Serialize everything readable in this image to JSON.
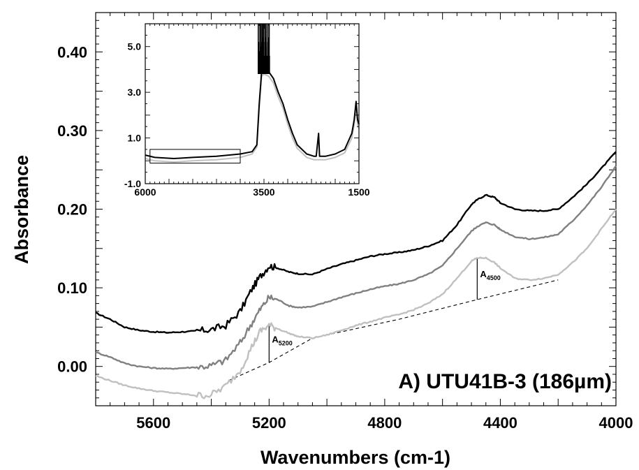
{
  "chart_data": [
    {
      "type": "line",
      "xlabel": "Wavenumbers (cm-1)",
      "ylabel": "Absorbance",
      "xlim": [
        5800,
        4000
      ],
      "ylim": [
        -0.05,
        0.45
      ],
      "x_reversed": true,
      "xticks": [
        5600,
        5200,
        4800,
        4400,
        4000
      ],
      "xtick_labels": [
        "5600",
        "5200",
        "4800",
        "4400",
        "4000"
      ],
      "yticks": [
        0.0,
        0.1,
        0.2,
        0.3,
        0.4
      ],
      "ytick_labels": [
        "0.00",
        "0.10",
        "0.20",
        "0.30",
        "0.40"
      ],
      "panel_label": "A) UTU41B-3 (186µm)",
      "series": [
        {
          "color": "#000000",
          "points": [
            [
              5800,
              0.068
            ],
            [
              5750,
              0.06
            ],
            [
              5700,
              0.05
            ],
            [
              5650,
              0.046
            ],
            [
              5600,
              0.044
            ],
            [
              5550,
              0.043
            ],
            [
              5500,
              0.044
            ],
            [
              5450,
              0.045
            ],
            [
              5400,
              0.047
            ],
            [
              5350,
              0.052
            ],
            [
              5300,
              0.07
            ],
            [
              5260,
              0.098
            ],
            [
              5230,
              0.115
            ],
            [
              5200,
              0.128
            ],
            [
              5170,
              0.125
            ],
            [
              5130,
              0.12
            ],
            [
              5100,
              0.118
            ],
            [
              5050,
              0.117
            ],
            [
              5000,
              0.124
            ],
            [
              4950,
              0.13
            ],
            [
              4900,
              0.135
            ],
            [
              4850,
              0.14
            ],
            [
              4800,
              0.143
            ],
            [
              4750,
              0.145
            ],
            [
              4700,
              0.148
            ],
            [
              4650,
              0.153
            ],
            [
              4600,
              0.16
            ],
            [
              4550,
              0.18
            ],
            [
              4500,
              0.206
            ],
            [
              4480,
              0.212
            ],
            [
              4450,
              0.218
            ],
            [
              4420,
              0.215
            ],
            [
              4400,
              0.208
            ],
            [
              4350,
              0.2
            ],
            [
              4300,
              0.198
            ],
            [
              4250,
              0.198
            ],
            [
              4200,
              0.2
            ],
            [
              4150,
              0.215
            ],
            [
              4100,
              0.232
            ],
            [
              4050,
              0.252
            ],
            [
              4000,
              0.273
            ]
          ]
        },
        {
          "color": "#808080",
          "points": [
            [
              5800,
              0.018
            ],
            [
              5750,
              0.012
            ],
            [
              5700,
              0.004
            ],
            [
              5650,
              0.0
            ],
            [
              5600,
              -0.002
            ],
            [
              5550,
              -0.003
            ],
            [
              5500,
              -0.002
            ],
            [
              5450,
              -0.001
            ],
            [
              5400,
              0.001
            ],
            [
              5350,
              0.008
            ],
            [
              5300,
              0.03
            ],
            [
              5260,
              0.055
            ],
            [
              5230,
              0.073
            ],
            [
              5200,
              0.088
            ],
            [
              5170,
              0.085
            ],
            [
              5130,
              0.077
            ],
            [
              5100,
              0.075
            ],
            [
              5050,
              0.076
            ],
            [
              5000,
              0.082
            ],
            [
              4950,
              0.088
            ],
            [
              4900,
              0.093
            ],
            [
              4850,
              0.098
            ],
            [
              4800,
              0.102
            ],
            [
              4750,
              0.105
            ],
            [
              4700,
              0.11
            ],
            [
              4650,
              0.117
            ],
            [
              4600,
              0.128
            ],
            [
              4550,
              0.15
            ],
            [
              4500,
              0.172
            ],
            [
              4480,
              0.178
            ],
            [
              4450,
              0.183
            ],
            [
              4420,
              0.18
            ],
            [
              4400,
              0.174
            ],
            [
              4350,
              0.165
            ],
            [
              4300,
              0.162
            ],
            [
              4250,
              0.164
            ],
            [
              4200,
              0.168
            ],
            [
              4150,
              0.185
            ],
            [
              4100,
              0.205
            ],
            [
              4050,
              0.228
            ],
            [
              4000,
              0.255
            ]
          ]
        },
        {
          "color": "#c0c0c0",
          "points": [
            [
              5800,
              -0.012
            ],
            [
              5750,
              -0.018
            ],
            [
              5700,
              -0.024
            ],
            [
              5650,
              -0.028
            ],
            [
              5600,
              -0.031
            ],
            [
              5550,
              -0.033
            ],
            [
              5500,
              -0.035
            ],
            [
              5450,
              -0.037
            ],
            [
              5400,
              -0.036
            ],
            [
              5350,
              -0.025
            ],
            [
              5300,
              -0.005
            ],
            [
              5260,
              0.025
            ],
            [
              5230,
              0.045
            ],
            [
              5200,
              0.052
            ],
            [
              5170,
              0.048
            ],
            [
              5130,
              0.042
            ],
            [
              5100,
              0.038
            ],
            [
              5050,
              0.036
            ],
            [
              5000,
              0.04
            ],
            [
              4950,
              0.046
            ],
            [
              4900,
              0.052
            ],
            [
              4850,
              0.057
            ],
            [
              4800,
              0.062
            ],
            [
              4750,
              0.066
            ],
            [
              4700,
              0.072
            ],
            [
              4650,
              0.08
            ],
            [
              4600,
              0.092
            ],
            [
              4550,
              0.112
            ],
            [
              4500,
              0.134
            ],
            [
              4480,
              0.138
            ],
            [
              4450,
              0.138
            ],
            [
              4420,
              0.132
            ],
            [
              4400,
              0.125
            ],
            [
              4350,
              0.112
            ],
            [
              4300,
              0.11
            ],
            [
              4250,
              0.112
            ],
            [
              4200,
              0.117
            ],
            [
              4150,
              0.132
            ],
            [
              4100,
              0.15
            ],
            [
              4050,
              0.175
            ],
            [
              4000,
              0.2
            ]
          ]
        }
      ],
      "baselines": [
        {
          "style": "dashed",
          "points": [
            [
              5340,
              -0.018
            ],
            [
              5200,
              0.005
            ],
            [
              5050,
              0.036
            ],
            [
              4750,
              0.06
            ],
            [
              4480,
              0.085
            ],
            [
              4200,
              0.11
            ]
          ]
        }
      ],
      "annotations": [
        {
          "main": "A",
          "sub": "5200",
          "x": 5200,
          "y_top": 0.052,
          "y_bottom": 0.005
        },
        {
          "main": "A",
          "sub": "4500",
          "x": 4480,
          "y_top": 0.138,
          "y_bottom": 0.085
        }
      ]
    },
    {
      "type": "line",
      "inset": true,
      "xlim": [
        6000,
        1500
      ],
      "ylim": [
        -1.0,
        6.0
      ],
      "x_reversed": true,
      "xticks": [
        6000,
        3500,
        1500
      ],
      "xtick_labels": [
        "6000",
        "3500",
        "1500"
      ],
      "yticks": [
        -1.0,
        1.0,
        3.0,
        5.0
      ],
      "ytick_labels": [
        "-1.0",
        "1.0",
        "3.0",
        "5.0"
      ],
      "highlight_range": {
        "x": [
          5900,
          4000
        ],
        "y": [
          -0.1,
          0.5
        ]
      },
      "series": [
        {
          "color": "#000000",
          "points": [
            [
              6000,
              0.25
            ],
            [
              5800,
              0.15
            ],
            [
              5400,
              0.1
            ],
            [
              5000,
              0.15
            ],
            [
              4500,
              0.2
            ],
            [
              4000,
              0.3
            ],
            [
              3750,
              0.4
            ],
            [
              3650,
              0.7
            ],
            [
              3600,
              2.5
            ],
            [
              3550,
              3.9
            ],
            [
              3500,
              4.0
            ],
            [
              3400,
              3.9
            ],
            [
              3300,
              3.6
            ],
            [
              3200,
              3.0
            ],
            [
              3100,
              2.5
            ],
            [
              3000,
              1.8
            ],
            [
              2900,
              1.2
            ],
            [
              2800,
              0.7
            ],
            [
              2600,
              0.3
            ],
            [
              2450,
              0.2
            ],
            [
              2400,
              0.2
            ],
            [
              2350,
              1.2
            ],
            [
              2330,
              0.2
            ],
            [
              2200,
              0.2
            ],
            [
              2000,
              0.3
            ],
            [
              1800,
              0.5
            ],
            [
              1650,
              1.2
            ],
            [
              1600,
              1.8
            ],
            [
              1560,
              2.6
            ],
            [
              1530,
              1.8
            ],
            [
              1500,
              1.6
            ]
          ]
        },
        {
          "color": "#c0c0c0",
          "points": [
            [
              6000,
              0.1
            ],
            [
              5800,
              0.0
            ],
            [
              5400,
              -0.05
            ],
            [
              5000,
              0.0
            ],
            [
              4500,
              0.05
            ],
            [
              4000,
              0.15
            ],
            [
              3750,
              0.3
            ],
            [
              3650,
              0.6
            ],
            [
              3600,
              2.3
            ],
            [
              3550,
              3.7
            ],
            [
              3500,
              3.8
            ],
            [
              3400,
              3.7
            ],
            [
              3300,
              3.4
            ],
            [
              3200,
              2.8
            ],
            [
              3100,
              2.3
            ],
            [
              3000,
              1.6
            ],
            [
              2900,
              1.0
            ],
            [
              2800,
              0.55
            ],
            [
              2600,
              0.15
            ],
            [
              2450,
              0.05
            ],
            [
              2400,
              0.05
            ],
            [
              2200,
              0.05
            ],
            [
              2000,
              0.15
            ],
            [
              1800,
              0.35
            ],
            [
              1650,
              1.0
            ],
            [
              1600,
              1.6
            ],
            [
              1560,
              2.4
            ],
            [
              1530,
              1.6
            ],
            [
              1500,
              1.4
            ]
          ]
        }
      ],
      "saturation_spikes": {
        "x": [
          3620,
          3585,
          3560,
          3535,
          3510,
          3480,
          3455,
          3420,
          3390
        ],
        "y_low": 3.8,
        "y_high": 6.0
      }
    }
  ]
}
